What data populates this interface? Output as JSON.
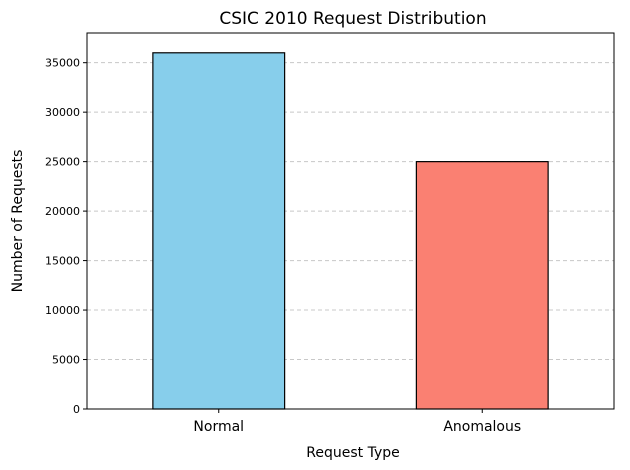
{
  "chart_data": {
    "type": "bar",
    "title": "CSIC 2010 Request Distribution",
    "xlabel": "Request Type",
    "ylabel": "Number of Requests",
    "categories": [
      "Normal",
      "Anomalous"
    ],
    "values": [
      36000,
      25000
    ],
    "colors": [
      "#87ceeb",
      "#fa8072"
    ],
    "edge_color": "#000000",
    "ylim": [
      0,
      38000
    ],
    "yticks": [
      0,
      5000,
      10000,
      15000,
      20000,
      25000,
      30000,
      35000
    ],
    "grid": "horizontal-dashed",
    "legend": "none"
  }
}
